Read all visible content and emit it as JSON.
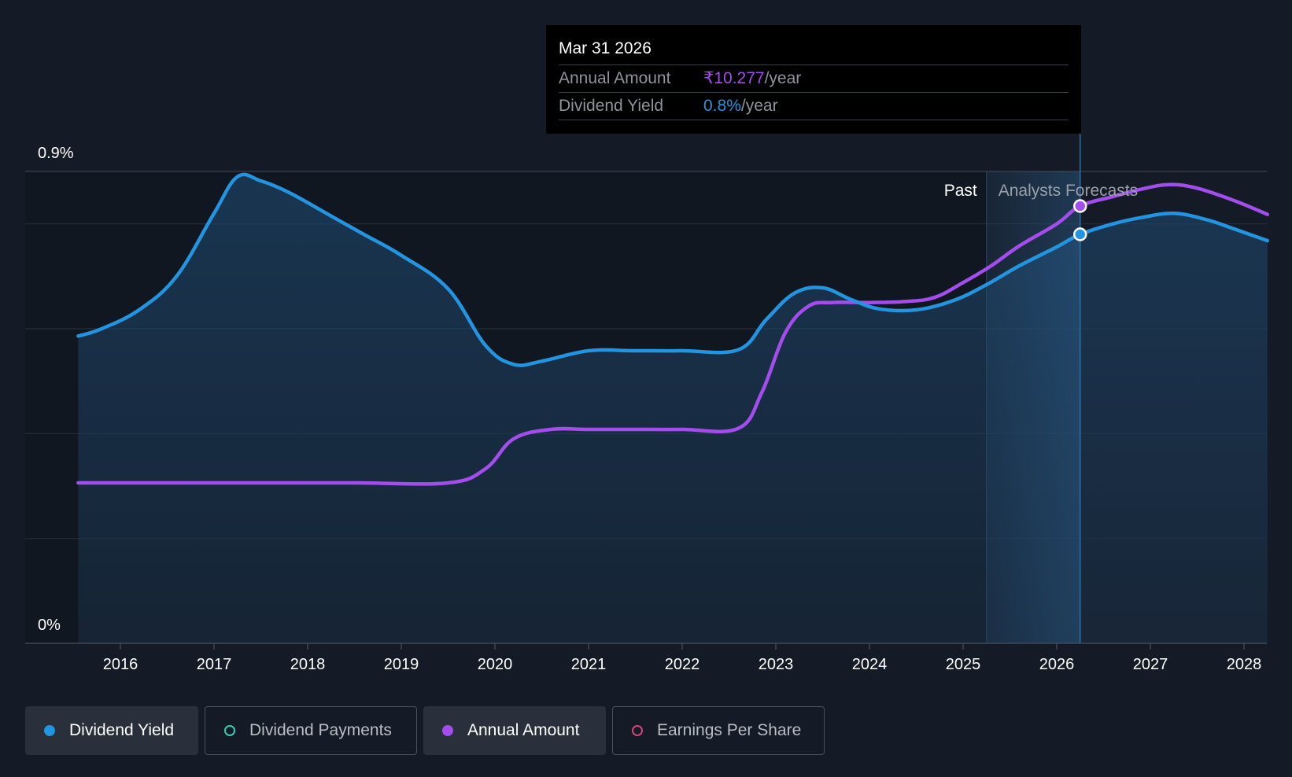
{
  "chart_data": {
    "type": "area",
    "y_axis": {
      "min_label": "0%",
      "max_label": "0.9%",
      "ylim": [
        0,
        0.9
      ]
    },
    "x_ticks": [
      "2016",
      "2017",
      "2018",
      "2019",
      "2020",
      "2021",
      "2022",
      "2023",
      "2024",
      "2025",
      "2026",
      "2027",
      "2028"
    ],
    "x_range": [
      2015.5,
      2028.25
    ],
    "past_label": "Past",
    "forecast_label": "Analysts Forecasts",
    "forecast_start": 2025.25,
    "series": [
      {
        "name": "Dividend Yield",
        "color": "#2394df",
        "axis": "percent",
        "points": [
          [
            2015.55,
            0.586
          ],
          [
            2015.8,
            0.6
          ],
          [
            2016.2,
            0.636
          ],
          [
            2016.6,
            0.7
          ],
          [
            2017.0,
            0.82
          ],
          [
            2017.25,
            0.89
          ],
          [
            2017.5,
            0.882
          ],
          [
            2017.8,
            0.86
          ],
          [
            2018.2,
            0.82
          ],
          [
            2018.6,
            0.78
          ],
          [
            2019.0,
            0.74
          ],
          [
            2019.5,
            0.676
          ],
          [
            2019.9,
            0.568
          ],
          [
            2020.2,
            0.532
          ],
          [
            2020.5,
            0.538
          ],
          [
            2021.0,
            0.558
          ],
          [
            2021.5,
            0.558
          ],
          [
            2022.0,
            0.558
          ],
          [
            2022.6,
            0.56
          ],
          [
            2022.9,
            0.618
          ],
          [
            2023.2,
            0.668
          ],
          [
            2023.5,
            0.678
          ],
          [
            2023.8,
            0.656
          ],
          [
            2024.1,
            0.638
          ],
          [
            2024.5,
            0.636
          ],
          [
            2024.9,
            0.654
          ],
          [
            2025.25,
            0.684
          ],
          [
            2025.6,
            0.72
          ],
          [
            2026.0,
            0.756
          ],
          [
            2026.25,
            0.78
          ],
          [
            2026.6,
            0.8
          ],
          [
            2026.9,
            0.812
          ],
          [
            2027.25,
            0.82
          ],
          [
            2027.6,
            0.808
          ],
          [
            2027.9,
            0.79
          ],
          [
            2028.25,
            0.768
          ]
        ]
      },
      {
        "name": "Annual Amount",
        "color": "#a24dec",
        "axis": "amount",
        "points": [
          [
            2015.55,
            0.306
          ],
          [
            2016.5,
            0.306
          ],
          [
            2017.5,
            0.306
          ],
          [
            2018.5,
            0.306
          ],
          [
            2019.5,
            0.306
          ],
          [
            2019.9,
            0.333
          ],
          [
            2020.2,
            0.39
          ],
          [
            2020.6,
            0.408
          ],
          [
            2021.0,
            0.408
          ],
          [
            2021.5,
            0.408
          ],
          [
            2022.0,
            0.408
          ],
          [
            2022.6,
            0.41
          ],
          [
            2022.85,
            0.478
          ],
          [
            2023.1,
            0.592
          ],
          [
            2023.35,
            0.643
          ],
          [
            2023.6,
            0.65
          ],
          [
            2024.0,
            0.65
          ],
          [
            2024.4,
            0.652
          ],
          [
            2024.7,
            0.66
          ],
          [
            2025.0,
            0.688
          ],
          [
            2025.3,
            0.72
          ],
          [
            2025.6,
            0.758
          ],
          [
            2026.0,
            0.8
          ],
          [
            2026.25,
            0.834
          ],
          [
            2026.6,
            0.852
          ],
          [
            2026.9,
            0.866
          ],
          [
            2027.2,
            0.875
          ],
          [
            2027.5,
            0.868
          ],
          [
            2027.9,
            0.844
          ],
          [
            2028.25,
            0.818
          ]
        ]
      }
    ],
    "highlight": {
      "x": 2026.25,
      "yield_value": 0.78,
      "amount_value": 0.834
    },
    "grid": true
  },
  "tooltip": {
    "date": "Mar 31 2026",
    "rows": [
      {
        "label": "Annual Amount",
        "value": "₹10.277",
        "suffix": "/year",
        "color": "#a24dec"
      },
      {
        "label": "Dividend Yield",
        "value": "0.8%",
        "suffix": "/year",
        "color": "#2394df"
      }
    ]
  },
  "legend": [
    {
      "label": "Dividend Yield",
      "color": "#2394df",
      "active": true,
      "filled": true
    },
    {
      "label": "Dividend Payments",
      "color": "#3ec9b6",
      "active": false,
      "filled": false
    },
    {
      "label": "Annual Amount",
      "color": "#a24dec",
      "active": true,
      "filled": true
    },
    {
      "label": "Earnings Per Share",
      "color": "#d0457d",
      "active": false,
      "filled": false
    }
  ]
}
